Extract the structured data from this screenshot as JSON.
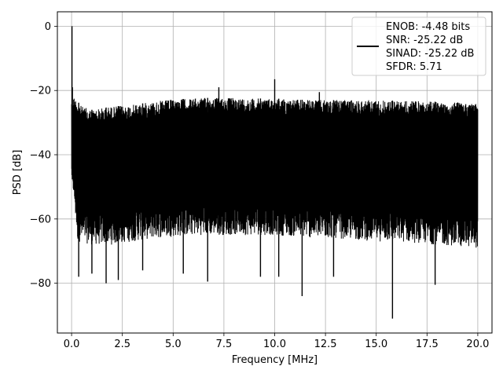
{
  "chart_data": {
    "type": "line",
    "xlabel": "Frequency [MHz]",
    "ylabel": "PSD [dB]",
    "xlim": [
      -0.7,
      20.7
    ],
    "ylim": [
      -95.5,
      4.5
    ],
    "xticks": [
      0.0,
      2.5,
      5.0,
      7.5,
      10.0,
      12.5,
      15.0,
      17.5,
      20.0
    ],
    "xtick_labels": [
      "0.0",
      "2.5",
      "5.0",
      "7.5",
      "10.0",
      "12.5",
      "15.0",
      "17.5",
      "20.0"
    ],
    "yticks": [
      0,
      -20,
      -40,
      -60,
      -80
    ],
    "ytick_labels": [
      "0",
      "−20",
      "−40",
      "−60",
      "−80"
    ],
    "grid": true,
    "legend_position": "top-right",
    "line_color": "#000000",
    "series": [
      {
        "legend_lines": [
          "ENOB: -4.48 bits",
          "SNR: -25.22 dB",
          "SINAD: -25.22 dB",
          "SFDR: 5.71"
        ],
        "description": "dense noise floor PSD",
        "upper_envelope": [
          [
            0.0,
            -21
          ],
          [
            0.5,
            -25
          ],
          [
            1.0,
            -26
          ],
          [
            2.0,
            -25
          ],
          [
            3.0,
            -24.5
          ],
          [
            4.0,
            -23.5
          ],
          [
            5.0,
            -22.8
          ],
          [
            6.0,
            -22.5
          ],
          [
            7.0,
            -22.2
          ],
          [
            8.0,
            -22.3
          ],
          [
            9.0,
            -22.5
          ],
          [
            10.0,
            -22.5
          ],
          [
            11.0,
            -22.8
          ],
          [
            12.0,
            -23
          ],
          [
            13.0,
            -23
          ],
          [
            14.0,
            -23
          ],
          [
            15.0,
            -23
          ],
          [
            16.0,
            -23.2
          ],
          [
            17.0,
            -23.3
          ],
          [
            18.0,
            -23.5
          ],
          [
            19.0,
            -23.7
          ],
          [
            20.0,
            -24
          ]
        ],
        "lower_envelope": [
          [
            0.0,
            -45
          ],
          [
            0.3,
            -65
          ],
          [
            1.0,
            -66
          ],
          [
            2.0,
            -66
          ],
          [
            3.0,
            -65
          ],
          [
            4.0,
            -64
          ],
          [
            5.0,
            -63.5
          ],
          [
            6.0,
            -63
          ],
          [
            7.0,
            -63
          ],
          [
            8.0,
            -63
          ],
          [
            9.0,
            -63
          ],
          [
            10.0,
            -63
          ],
          [
            11.0,
            -63.5
          ],
          [
            12.0,
            -64
          ],
          [
            13.0,
            -64
          ],
          [
            14.0,
            -64.5
          ],
          [
            15.0,
            -65
          ],
          [
            16.0,
            -65
          ],
          [
            17.0,
            -65.5
          ],
          [
            18.0,
            -66
          ],
          [
            19.0,
            -66.5
          ],
          [
            20.0,
            -67
          ]
        ],
        "peaks": [
          [
            0.02,
            0.0
          ],
          [
            0.04,
            -19
          ],
          [
            7.25,
            -19
          ],
          [
            10.0,
            -16.5
          ],
          [
            12.2,
            -20.5
          ]
        ],
        "dips": [
          [
            0.35,
            -78
          ],
          [
            1.0,
            -77
          ],
          [
            1.7,
            -80
          ],
          [
            2.3,
            -79
          ],
          [
            3.5,
            -76
          ],
          [
            5.5,
            -77
          ],
          [
            6.7,
            -79.5
          ],
          [
            9.3,
            -78
          ],
          [
            10.2,
            -78
          ],
          [
            11.35,
            -84
          ],
          [
            12.9,
            -78
          ],
          [
            15.8,
            -91
          ],
          [
            17.9,
            -80.5
          ]
        ]
      }
    ]
  }
}
